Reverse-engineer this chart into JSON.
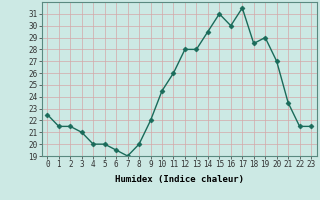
{
  "x": [
    0,
    1,
    2,
    3,
    4,
    5,
    6,
    7,
    8,
    9,
    10,
    11,
    12,
    13,
    14,
    15,
    16,
    17,
    18,
    19,
    20,
    21,
    22,
    23
  ],
  "y": [
    22.5,
    21.5,
    21.5,
    21.0,
    20.0,
    20.0,
    19.5,
    19.0,
    20.0,
    22.0,
    24.5,
    26.0,
    28.0,
    28.0,
    29.5,
    31.0,
    30.0,
    31.5,
    28.5,
    29.0,
    27.0,
    23.5,
    21.5,
    21.5
  ],
  "line_color": "#1a6b5a",
  "marker": "D",
  "markersize": 2.5,
  "linewidth": 1.0,
  "xlabel": "Humidex (Indice chaleur)",
  "xlim": [
    -0.5,
    23.5
  ],
  "ylim": [
    19,
    32
  ],
  "yticks": [
    19,
    20,
    21,
    22,
    23,
    24,
    25,
    26,
    27,
    28,
    29,
    30,
    31
  ],
  "xticks": [
    0,
    1,
    2,
    3,
    4,
    5,
    6,
    7,
    8,
    9,
    10,
    11,
    12,
    13,
    14,
    15,
    16,
    17,
    18,
    19,
    20,
    21,
    22,
    23
  ],
  "xtick_labels": [
    "0",
    "1",
    "2",
    "3",
    "4",
    "5",
    "6",
    "7",
    "8",
    "9",
    "10",
    "11",
    "12",
    "13",
    "14",
    "15",
    "16",
    "17",
    "18",
    "19",
    "20",
    "21",
    "22",
    "23"
  ],
  "bg_color": "#cce9e4",
  "grid_color": "#c0d8d4",
  "tick_fontsize": 5.5,
  "xlabel_fontsize": 6.5,
  "xlabel_fontweight": "bold"
}
